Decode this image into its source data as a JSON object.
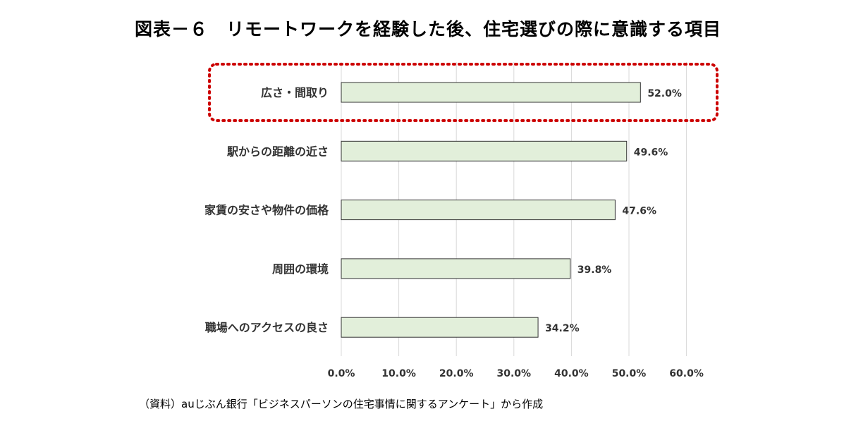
{
  "title": "図表－６　リモートワークを経験した後、住宅選びの際に意識する項目",
  "source": "（資料）auじぶん銀行「ビジネスパーソンの住宅事情に関するアンケート」から作成",
  "colors": {
    "bar_fill": "#e2efda",
    "bar_stroke": "#333333",
    "grid": "#d9d9d9",
    "highlight": "#cc0000"
  },
  "chart_data": {
    "type": "bar",
    "orientation": "horizontal",
    "categories": [
      "広さ・間取り",
      "駅からの距離の近さ",
      "家賃の安さや物件の価格",
      "周囲の環境",
      "職場へのアクセスの良さ"
    ],
    "values": [
      52.0,
      49.6,
      47.6,
      39.8,
      34.2
    ],
    "value_labels": [
      "52.0%",
      "49.6%",
      "47.6%",
      "39.8%",
      "34.2%"
    ],
    "xlim": [
      0,
      60
    ],
    "ticks": [
      "0.0%",
      "10.0%",
      "20.0%",
      "30.0%",
      "40.0%",
      "50.0%",
      "60.0%"
    ],
    "grid": true,
    "highlighted_category": "広さ・間取り"
  }
}
